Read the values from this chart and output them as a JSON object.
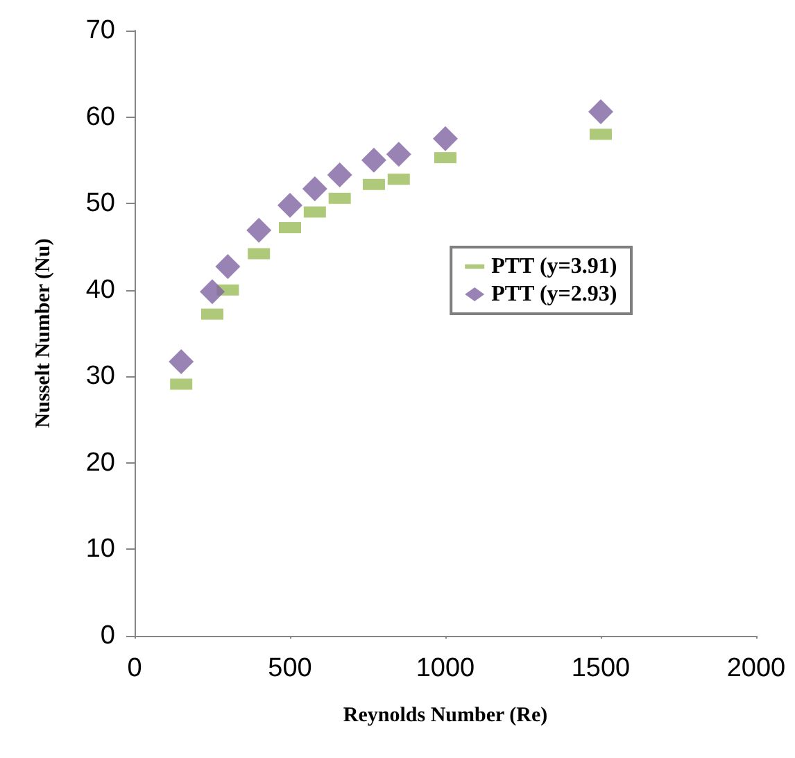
{
  "chart_data": {
    "type": "scatter",
    "xlabel": "Reynolds Number (Re)",
    "ylabel": "Nusselt Number (Nu)",
    "x": [
      150,
      250,
      300,
      400,
      500,
      580,
      660,
      770,
      850,
      1000,
      1500
    ],
    "series": [
      {
        "name": "PTT (y=3.91)",
        "color": "#9bbb59",
        "values": [
          29.1,
          37.2,
          40.0,
          44.2,
          47.2,
          49.0,
          50.6,
          52.2,
          52.8,
          55.3,
          58.0
        ]
      },
      {
        "name": "PTT (y=2.93)",
        "color": "#8064a2",
        "marker": "diamond",
        "values": [
          31.7,
          39.8,
          42.7,
          46.9,
          49.8,
          51.7,
          53.3,
          55.0,
          55.7,
          57.5,
          60.6
        ]
      }
    ],
    "xlim": [
      0,
      2000
    ],
    "xticks": [
      0,
      500,
      1000,
      1500,
      2000
    ],
    "ylim": [
      0,
      70
    ],
    "yticks": [
      0,
      10,
      20,
      30,
      40,
      50,
      60,
      70
    ],
    "grid": false,
    "legend": "right"
  }
}
